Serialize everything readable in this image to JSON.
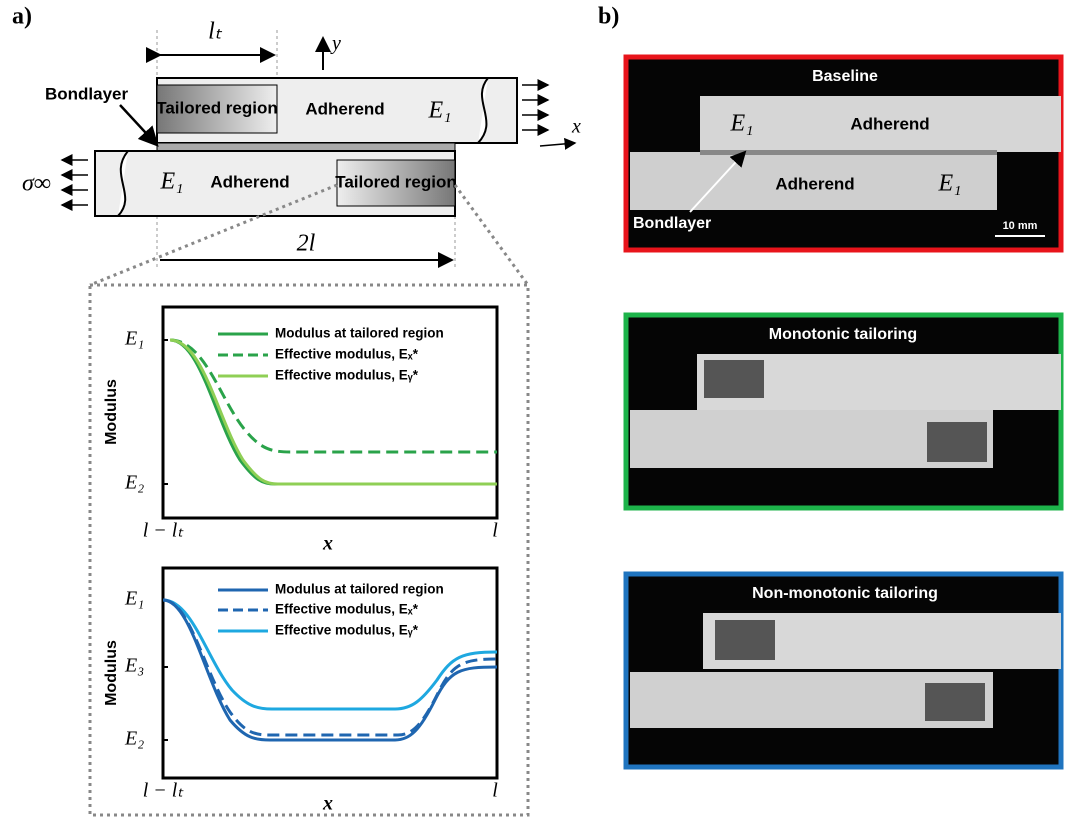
{
  "panel_a": {
    "label": "a)",
    "schematic": {
      "lt": "lₜ",
      "y_axis": "y",
      "x_axis": "x",
      "bondlayer": "Bondlayer",
      "tailored_top": "Tailored region",
      "adherend_top": "Adherend",
      "e_top": "E₁",
      "stress": "σ∞",
      "e_bottom": "E₁",
      "adherend_bottom": "Adherend",
      "tailored_bottom": "Tailored region",
      "length": "2l"
    },
    "plot1": {
      "legend": [
        "Modulus at tailored region",
        "Effective modulus, Eₓ*",
        "Effective modulus, Eᵧ*"
      ],
      "y_label": "Modulus",
      "y_ticks": [
        "E₁",
        "E₂"
      ],
      "x_ticks": [
        "l − lₜ",
        "l"
      ],
      "x_label": "x"
    },
    "plot2": {
      "legend": [
        "Modulus at tailored region",
        "Effective modulus, Eₓ*",
        "Effective modulus, Eᵧ*"
      ],
      "y_label": "Modulus",
      "y_ticks": [
        "E₁",
        "E₃",
        "E₂"
      ],
      "x_ticks": [
        "l − lₜ",
        "l"
      ],
      "x_label": "x"
    }
  },
  "panel_b": {
    "label": "b)",
    "baseline": {
      "title": "Baseline",
      "e_top": "E₁",
      "adherend_top": "Adherend",
      "adherend_bottom": "Adherend",
      "e_bottom": "E₁",
      "bondlayer": "Bondlayer",
      "scale": "10 mm"
    },
    "monotonic": {
      "title": "Monotonic tailoring"
    },
    "non_monotonic": {
      "title": "Non-monotonic tailoring"
    }
  }
}
